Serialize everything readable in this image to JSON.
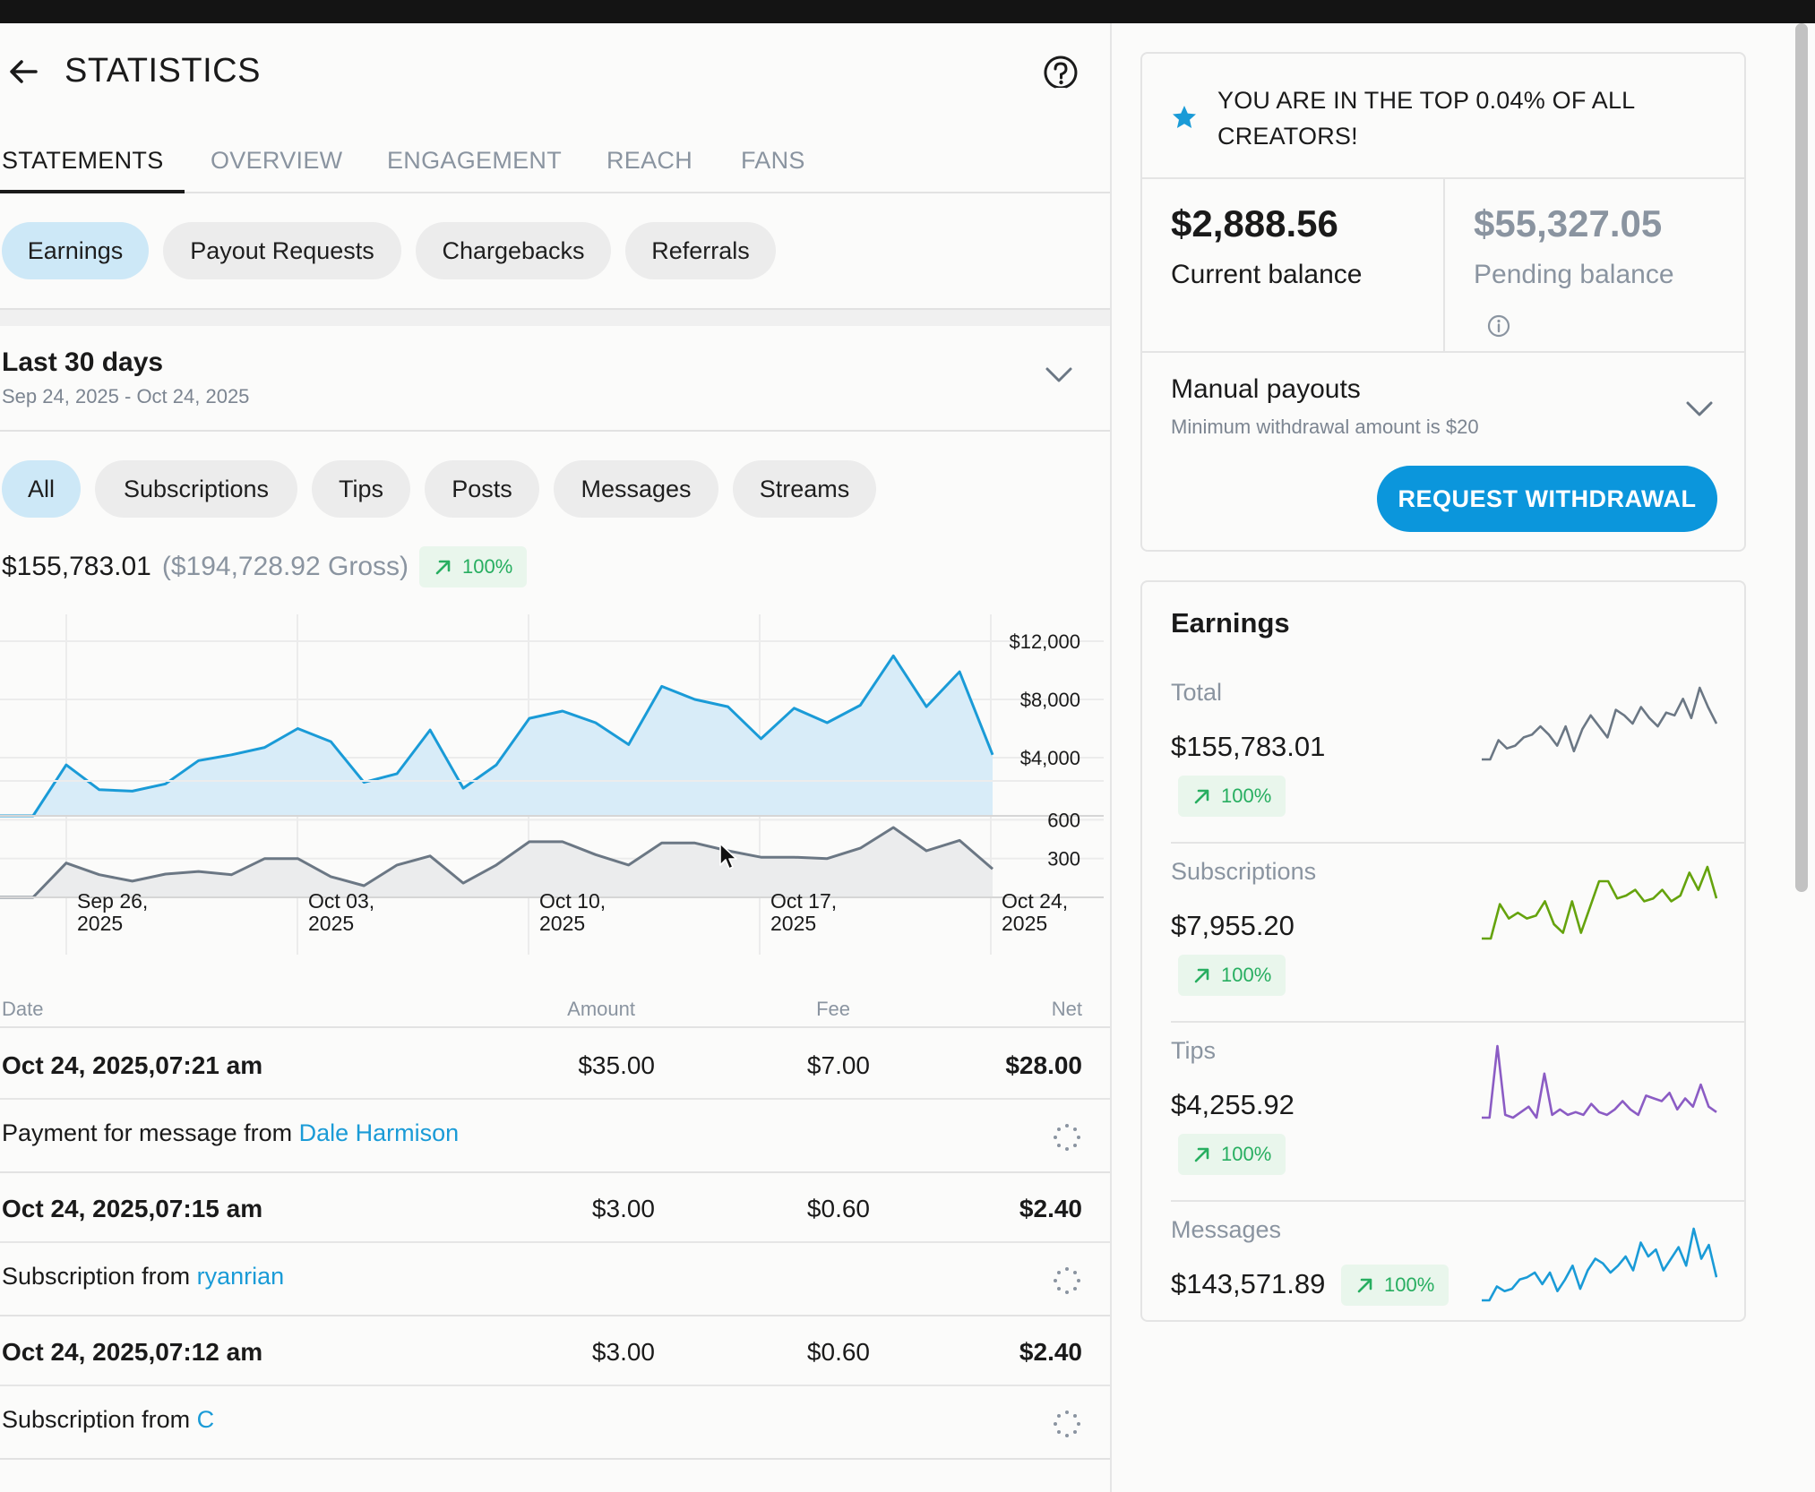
{
  "header": {
    "title": "STATISTICS"
  },
  "tabs": [
    "STATEMENTS",
    "OVERVIEW",
    "ENGAGEMENT",
    "REACH",
    "FANS"
  ],
  "statement_types": [
    "Earnings",
    "Payout Requests",
    "Chargebacks",
    "Referrals"
  ],
  "period": {
    "title": "Last 30 days",
    "range": "Sep 24, 2025 - Oct 24, 2025"
  },
  "filters": [
    "All",
    "Subscriptions",
    "Tips",
    "Posts",
    "Messages",
    "Streams"
  ],
  "summary": {
    "net": "$155,783.01",
    "gross": "($194,728.92 Gross)",
    "change": "100%"
  },
  "chart_data": {
    "type": "area",
    "x_tick_labels": [
      [
        "Sep 26,",
        "2025"
      ],
      [
        "Oct 03,",
        "2025"
      ],
      [
        "Oct 10,",
        "2025"
      ],
      [
        "Oct 17,",
        "2025"
      ],
      [
        "Oct 24,",
        "2025"
      ]
    ],
    "series": [
      {
        "values": [
          0,
          0,
          3500,
          1800,
          1700,
          2200,
          3800,
          4200,
          4700,
          6000,
          5100,
          2300,
          2900,
          5900,
          1900,
          3500,
          6700,
          7200,
          6400,
          4900,
          8900,
          8000,
          7500,
          5300,
          7400,
          6400,
          7600,
          11000,
          7500,
          9900,
          4200
        ],
        "ylim": [
          0,
          12000
        ],
        "y_tick_labels": [
          "$12,000",
          "$8,000",
          "$4,000"
        ],
        "color": "#1a9bd7",
        "fill": "#d8ecf8"
      },
      {
        "values": [
          0,
          0,
          265,
          175,
          125,
          180,
          200,
          175,
          300,
          300,
          160,
          90,
          250,
          320,
          110,
          250,
          430,
          430,
          330,
          250,
          420,
          420,
          360,
          310,
          310,
          300,
          380,
          540,
          360,
          440,
          220
        ],
        "ylim": [
          0,
          900
        ],
        "y_tick_labels": [
          "600",
          "300"
        ],
        "color": "#6b7784",
        "fill": "#ebeced"
      }
    ]
  },
  "table": {
    "headers": {
      "date": "Date",
      "amount": "Amount",
      "fee": "Fee",
      "net": "Net"
    },
    "rows": [
      {
        "date": "Oct 24, 2025,07:21 am",
        "amount": "$35.00",
        "fee": "$7.00",
        "net": "$28.00",
        "desc": "Payment for message from",
        "user": "Dale Harmison"
      },
      {
        "date": "Oct 24, 2025,07:15 am",
        "amount": "$3.00",
        "fee": "$0.60",
        "net": "$2.40",
        "desc": "Subscription from",
        "user": "ryanrian"
      },
      {
        "date": "Oct 24, 2025,07:12 am",
        "amount": "$3.00",
        "fee": "$0.60",
        "net": "$2.40",
        "desc": "Subscription from",
        "user": "C"
      }
    ]
  },
  "sidebar": {
    "top_banner": {
      "line1": "YOU ARE IN THE TOP 0.04% OF ALL",
      "line2": "CREATORS!"
    },
    "current_balance": {
      "amount": "$2,888.56",
      "label": "Current balance"
    },
    "pending_balance": {
      "amount": "$55,327.05",
      "label": "Pending balance"
    },
    "payouts": {
      "title": "Manual payouts",
      "subtitle": "Minimum withdrawal amount is $20",
      "button": "REQUEST WITHDRAWAL"
    },
    "earnings": {
      "title": "Earnings",
      "items": [
        {
          "label": "Total",
          "amount": "$155,783.01",
          "change": "100%",
          "color": "#6b7784",
          "trend": [
            2,
            2,
            9,
            6,
            7,
            10,
            11,
            14,
            11,
            7,
            14,
            5,
            13,
            18,
            14,
            10,
            20,
            18,
            15,
            21,
            17,
            14,
            19,
            18,
            24,
            17,
            28,
            21,
            15
          ]
        },
        {
          "label": "Subscriptions",
          "amount": "$7,955.20",
          "change": "100%",
          "color": "#65a30d",
          "trend": [
            2,
            2,
            14,
            9,
            11,
            9,
            10,
            15,
            7,
            4,
            15,
            4,
            13,
            22,
            22,
            16,
            17,
            19,
            15,
            16,
            19,
            15,
            17,
            25,
            19,
            27,
            16
          ]
        },
        {
          "label": "Tips",
          "amount": "$4,255.92",
          "change": "100%",
          "color": "#8b5cc4",
          "trend": [
            2,
            2,
            28,
            3,
            2,
            4,
            6,
            2,
            18,
            3,
            5,
            3,
            4,
            3,
            7,
            4,
            3,
            5,
            8,
            5,
            3,
            10,
            9,
            8,
            11,
            5,
            9,
            6,
            14,
            6,
            4
          ]
        },
        {
          "label": "Messages",
          "amount": "$143,571.89",
          "change": "100%",
          "color": "#1a9bd7",
          "trend": [
            2,
            2,
            8,
            6,
            7,
            11,
            12,
            14,
            9,
            14,
            6,
            11,
            17,
            7,
            15,
            20,
            18,
            14,
            17,
            21,
            15,
            27,
            21,
            24,
            15,
            20,
            25,
            17,
            33,
            20,
            26,
            12
          ]
        }
      ]
    }
  }
}
